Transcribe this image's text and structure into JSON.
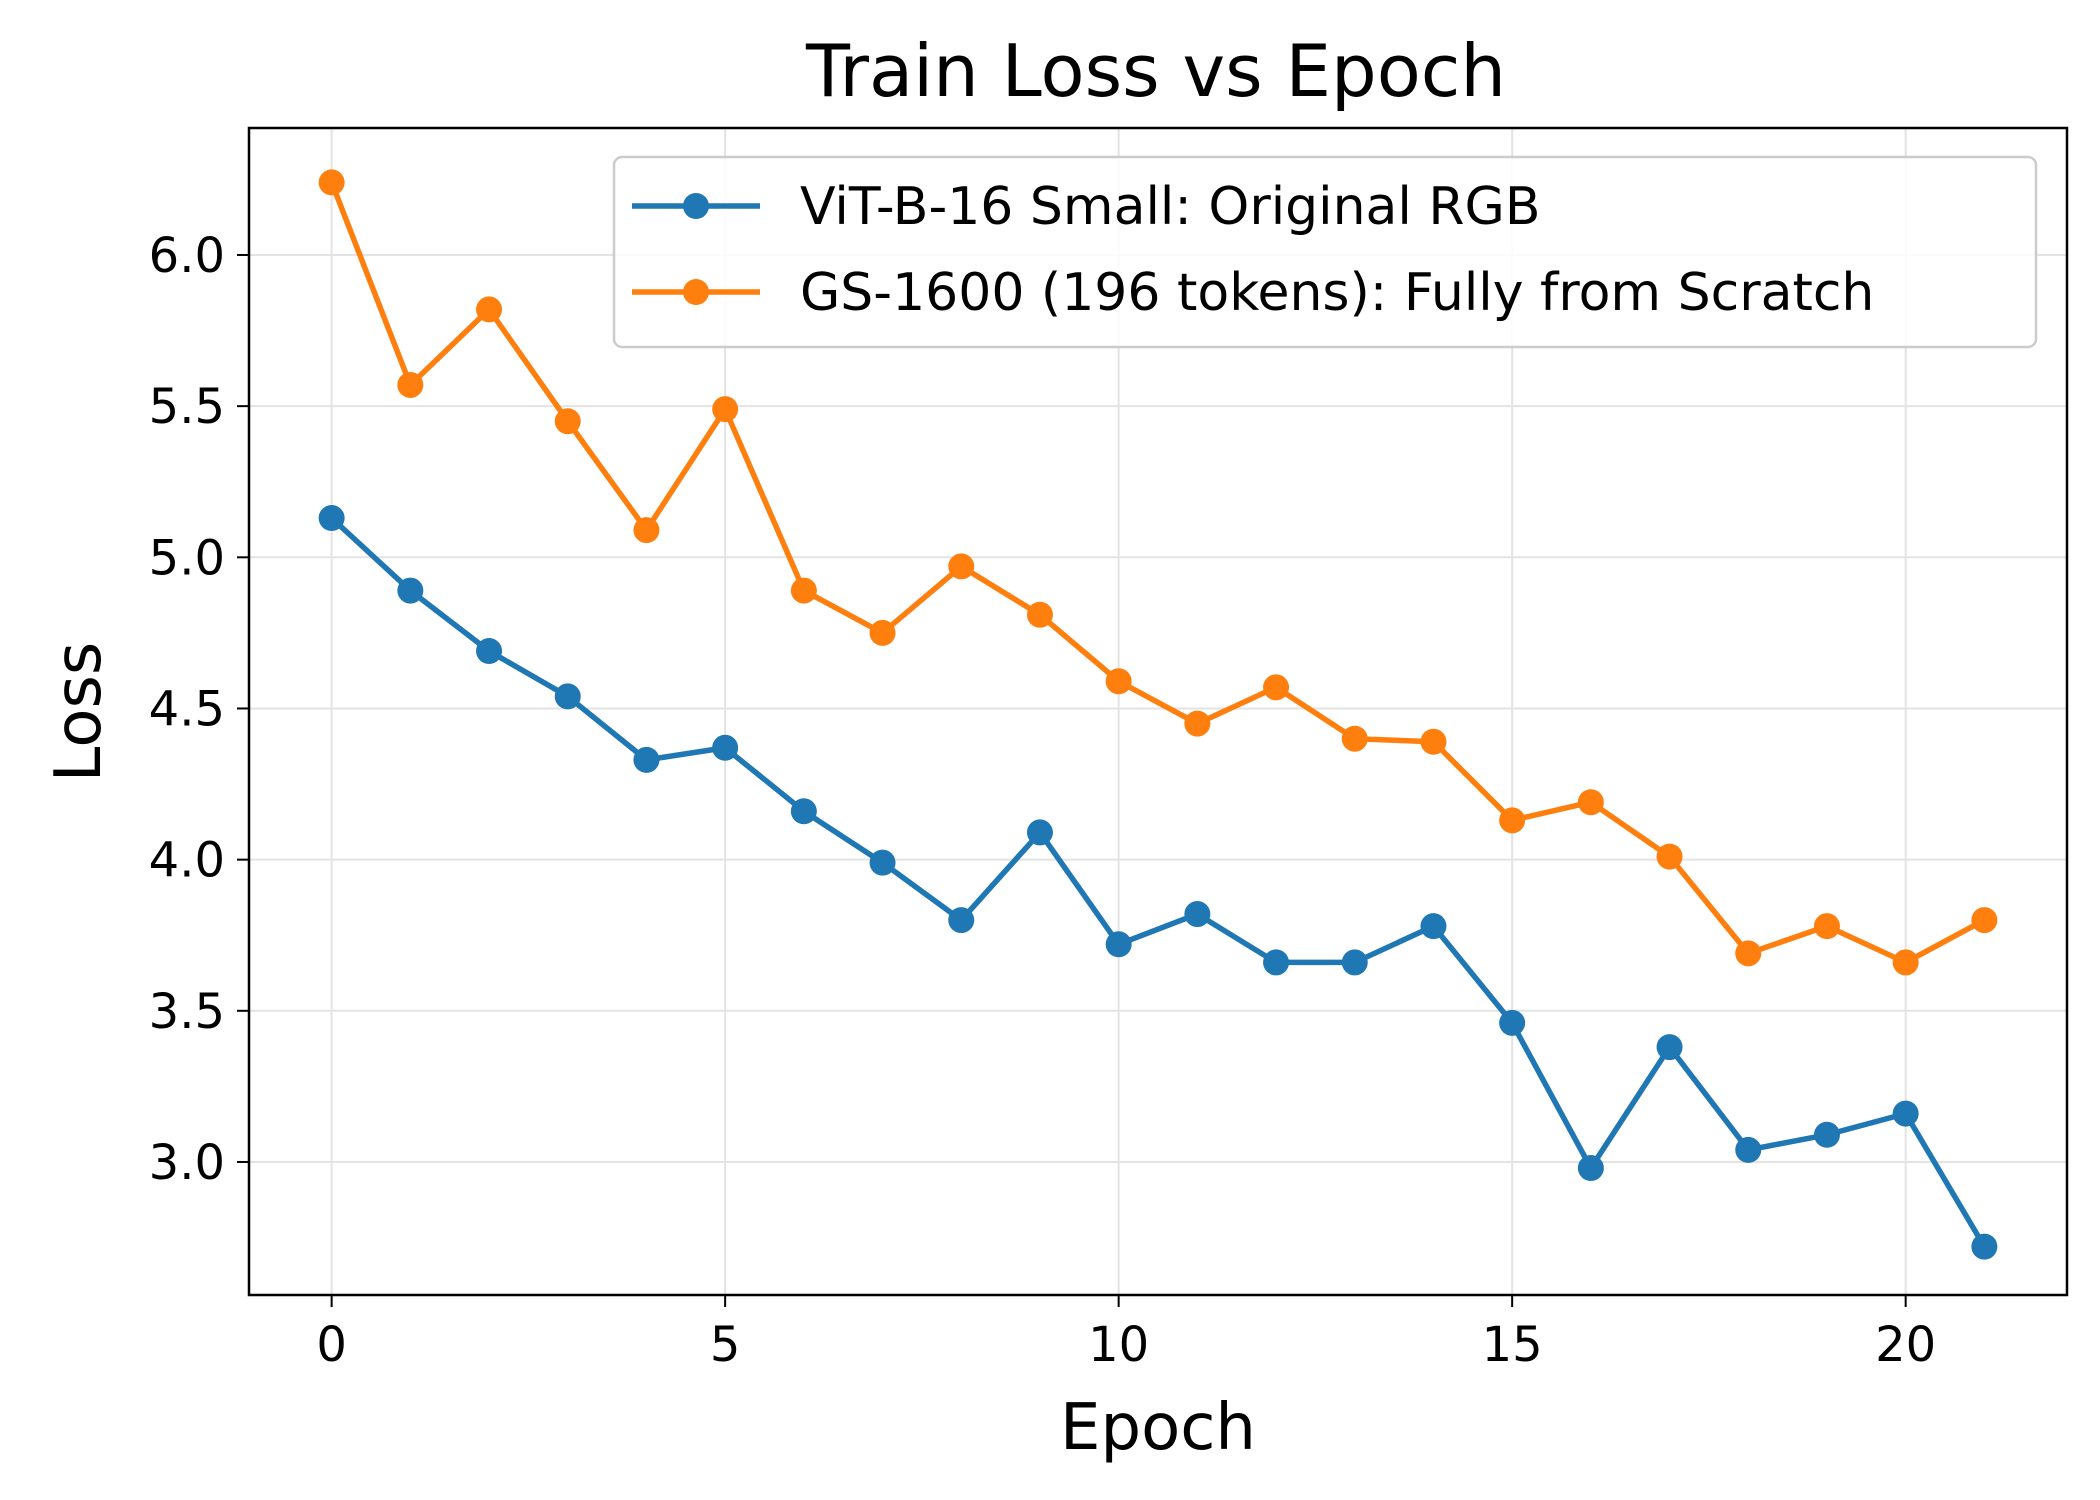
{
  "chart_data": {
    "type": "line",
    "title": "Train Loss vs Epoch",
    "xlabel": "Epoch",
    "ylabel": "Loss",
    "xlim": [
      -1.05,
      22.05
    ],
    "ylim": [
      2.56,
      6.42
    ],
    "xticks": [
      0,
      5,
      10,
      15,
      20
    ],
    "yticks": [
      3.0,
      3.5,
      4.0,
      4.5,
      5.0,
      5.5,
      6.0
    ],
    "xtick_labels": [
      "0",
      "5",
      "10",
      "15",
      "20"
    ],
    "ytick_labels": [
      "3.0",
      "3.5",
      "4.0",
      "4.5",
      "5.0",
      "5.5",
      "6.0"
    ],
    "grid": true,
    "legend_position": "top-right",
    "x": [
      0,
      1,
      2,
      3,
      4,
      5,
      6,
      7,
      8,
      9,
      10,
      11,
      12,
      13,
      14,
      15,
      16,
      17,
      18,
      19,
      20,
      21
    ],
    "series": [
      {
        "name": "ViT-B-16 Small: Original RGB",
        "color": "#1f77b4",
        "values": [
          5.13,
          4.89,
          4.69,
          4.54,
          4.33,
          4.37,
          4.16,
          3.99,
          3.8,
          4.09,
          3.72,
          3.82,
          3.66,
          3.66,
          3.78,
          3.46,
          2.98,
          3.38,
          3.04,
          3.09,
          3.16,
          2.72
        ]
      },
      {
        "name": "GS-1600 (196 tokens): Fully from Scratch",
        "color": "#ff7f0e",
        "values": [
          6.24,
          5.57,
          5.82,
          5.45,
          5.09,
          5.49,
          4.89,
          4.75,
          4.97,
          4.81,
          4.59,
          4.45,
          4.57,
          4.4,
          4.39,
          4.13,
          4.19,
          4.01,
          3.69,
          3.78,
          3.66,
          3.8
        ]
      }
    ]
  }
}
